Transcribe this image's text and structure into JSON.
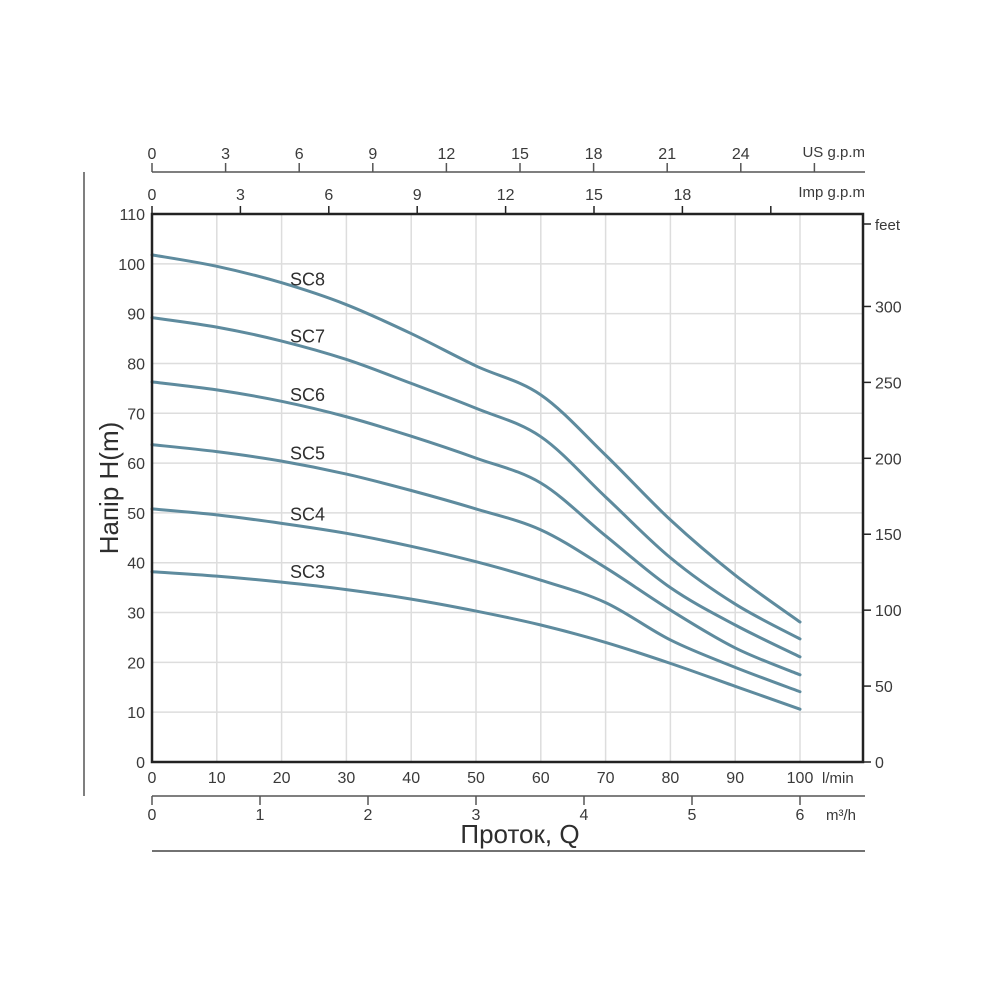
{
  "chart_data": {
    "type": "line",
    "title": "",
    "xlabel": "Проток, Q",
    "ylabel": "Напір H(m)",
    "x_unit": "l/min",
    "y_unit": "m",
    "xlim": [
      0,
      110
    ],
    "ylim": [
      0,
      110
    ],
    "grid": true,
    "x": [
      0,
      10,
      20,
      30,
      40,
      50,
      60,
      70,
      80,
      90,
      100
    ],
    "series": [
      {
        "name": "SC8",
        "values": [
          101.8,
          99.5,
          96.2,
          91.8,
          86.0,
          79.5,
          73.7,
          61.6,
          48.6,
          37.5,
          28.1
        ]
      },
      {
        "name": "SC7",
        "values": [
          89.2,
          87.3,
          84.5,
          80.8,
          76.0,
          71.0,
          65.3,
          53.2,
          41.0,
          31.7,
          24.7
        ]
      },
      {
        "name": "SC6",
        "values": [
          76.3,
          74.7,
          72.4,
          69.3,
          65.4,
          61.0,
          56.0,
          45.4,
          35.0,
          27.5,
          21.1
        ]
      },
      {
        "name": "SC5",
        "values": [
          63.7,
          62.3,
          60.4,
          57.8,
          54.5,
          50.8,
          46.6,
          39.0,
          30.5,
          22.9,
          17.5
        ]
      },
      {
        "name": "SC4",
        "values": [
          50.8,
          49.6,
          47.9,
          45.9,
          43.3,
          40.2,
          36.5,
          32.0,
          24.5,
          19.0,
          14.1
        ]
      },
      {
        "name": "SC3",
        "values": [
          38.2,
          37.3,
          36.1,
          34.6,
          32.7,
          30.3,
          27.5,
          24.0,
          19.8,
          15.2,
          10.6
        ]
      }
    ],
    "axes": {
      "left": {
        "label": "Напір H(m)",
        "ticks": [
          "0",
          "10",
          "20",
          "30",
          "40",
          "50",
          "60",
          "70",
          "80",
          "90",
          "100",
          "110"
        ]
      },
      "right": {
        "label": "feet",
        "ticks": [
          "0",
          "50",
          "100",
          "150",
          "200",
          "250",
          "300"
        ]
      },
      "bottom_lmin": {
        "label": "l/min",
        "ticks": [
          "0",
          "10",
          "20",
          "30",
          "40",
          "50",
          "60",
          "70",
          "80",
          "90",
          "100"
        ]
      },
      "bottom_m3h": {
        "label": "m³/h",
        "ticks": [
          "0",
          "1",
          "2",
          "3",
          "4",
          "5",
          "6"
        ]
      },
      "top_us_gpm": {
        "label": "US g.p.m",
        "ticks": [
          "0",
          "3",
          "6",
          "9",
          "12",
          "15",
          "18",
          "21",
          "24"
        ]
      },
      "top_imp_gpm": {
        "label": "Imp g.p.m",
        "ticks": [
          "0",
          "3",
          "6",
          "9",
          "12",
          "15",
          "18"
        ]
      }
    },
    "colors": {
      "curve": "#5e8b9e",
      "grid": "#dddddd",
      "frame": "#222222",
      "axis": "#555555"
    }
  }
}
